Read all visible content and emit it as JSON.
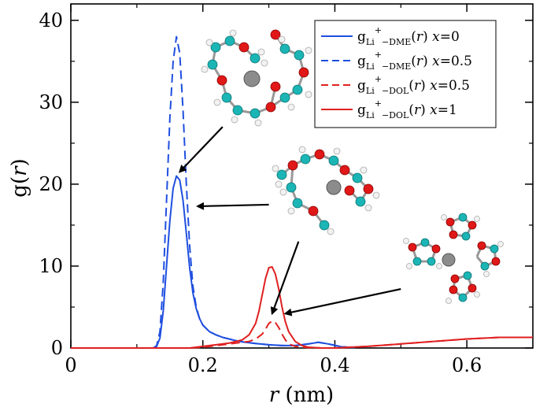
{
  "chart_data": {
    "type": "line",
    "title": "",
    "xlabel_var": "r",
    "xlabel_unit": " (nm)",
    "ylabel_main": "g(",
    "ylabel_var": "r",
    "ylabel_end": ")",
    "xlim": [
      0,
      0.7
    ],
    "ylim": [
      0,
      42
    ],
    "xticks": [
      0,
      0.2,
      0.4,
      0.6
    ],
    "xtick_labels": [
      "0",
      "0.2",
      "0.4",
      "0.6"
    ],
    "yticks": [
      0,
      10,
      20,
      30,
      40
    ],
    "ytick_labels": [
      "0",
      "10",
      "20",
      "30",
      "40"
    ],
    "legend_position": "top-right",
    "series": [
      {
        "name": "g_{Li+-DME}(r) x=0",
        "legend": {
          "g": "g",
          "sub": "Li",
          "sup": "+",
          "sub2": "−DME",
          "r": "(r)",
          "x": "x",
          "val": "=0"
        },
        "color": "#1f4fe0",
        "dash": "solid",
        "x": [
          0.125,
          0.13,
          0.135,
          0.14,
          0.145,
          0.15,
          0.155,
          0.16,
          0.165,
          0.17,
          0.175,
          0.18,
          0.185,
          0.19,
          0.195,
          0.2,
          0.21,
          0.22,
          0.23,
          0.24,
          0.25,
          0.26,
          0.28,
          0.3,
          0.32,
          0.34,
          0.36,
          0.375,
          0.39,
          0.41,
          0.43
        ],
        "y": [
          0,
          0.2,
          1.2,
          4.5,
          10,
          15.5,
          19.5,
          21,
          20.5,
          18,
          14,
          9.8,
          6.7,
          4.8,
          3.6,
          2.8,
          2,
          1.6,
          1.3,
          1.1,
          0.9,
          0.75,
          0.55,
          0.4,
          0.3,
          0.3,
          0.5,
          0.7,
          0.5,
          0.15,
          0.05
        ]
      },
      {
        "name": "g_{Li+-DME}(r) x=0.5",
        "legend": {
          "g": "g",
          "sub": "Li",
          "sup": "+",
          "sub2": "−DME",
          "r": "(r)",
          "x": "x",
          "val": "=0.5"
        },
        "color": "#1f4fe0",
        "dash": "dashed",
        "x": [
          0.125,
          0.13,
          0.135,
          0.14,
          0.145,
          0.15,
          0.155,
          0.16,
          0.165,
          0.17,
          0.175,
          0.18,
          0.185,
          0.19,
          0.195,
          0.2,
          0.21,
          0.22,
          0.23,
          0.24,
          0.25,
          0.26,
          0.28,
          0.3,
          0.32,
          0.34,
          0.36,
          0.375,
          0.39,
          0.41,
          0.43
        ],
        "y": [
          0,
          0.3,
          2,
          8,
          18,
          28,
          35,
          38,
          36,
          29,
          20,
          12.5,
          7.5,
          5,
          3.6,
          2.8,
          2,
          1.6,
          1.3,
          1.1,
          0.9,
          0.75,
          0.55,
          0.4,
          0.3,
          0.3,
          0.5,
          0.7,
          0.5,
          0.15,
          0.05
        ]
      },
      {
        "name": "g_{Li+-DOL}(r) x=0.5",
        "legend": {
          "g": "g",
          "sub": "Li",
          "sup": "+",
          "sub2": "−DOL",
          "r": "(r)",
          "x": "x",
          "val": "=0.5"
        },
        "color": "#e02020",
        "dash": "dashed",
        "x": [
          0,
          0.18,
          0.2,
          0.22,
          0.24,
          0.26,
          0.27,
          0.28,
          0.29,
          0.295,
          0.3,
          0.305,
          0.31,
          0.315,
          0.32,
          0.325,
          0.33,
          0.34,
          0.36,
          0.38,
          0.4,
          0.45,
          0.5,
          0.55,
          0.6,
          0.65,
          0.7
        ],
        "y": [
          0,
          0,
          0.1,
          0.3,
          0.5,
          0.7,
          0.8,
          1.1,
          1.7,
          2.3,
          3.0,
          3.3,
          3.1,
          2.5,
          1.7,
          1.0,
          0.5,
          0.2,
          0.05,
          0,
          0,
          0.2,
          0.5,
          0.8,
          1.1,
          1.3,
          1.3
        ]
      },
      {
        "name": "g_{Li+-DOL}(r) x=1",
        "legend": {
          "g": "g",
          "sub": "Li",
          "sup": "+",
          "sub2": "−DOL",
          "r": "(r)",
          "x": "x",
          "val": "=1"
        },
        "color": "#e02020",
        "dash": "solid",
        "x": [
          0,
          0.18,
          0.2,
          0.22,
          0.24,
          0.26,
          0.27,
          0.28,
          0.285,
          0.29,
          0.295,
          0.3,
          0.305,
          0.31,
          0.315,
          0.32,
          0.325,
          0.33,
          0.34,
          0.35,
          0.36,
          0.38,
          0.4,
          0.45,
          0.5,
          0.55,
          0.6,
          0.65,
          0.7
        ],
        "y": [
          0,
          0,
          0.2,
          0.4,
          0.6,
          1.0,
          1.6,
          3.0,
          4.5,
          6.5,
          8.5,
          9.8,
          9.9,
          9.0,
          7.2,
          5.0,
          3.2,
          2.0,
          0.8,
          0.3,
          0.1,
          0,
          0,
          0.2,
          0.5,
          0.8,
          1.1,
          1.3,
          1.3
        ]
      }
    ],
    "annotations": [
      {
        "name": "arrow-dme-x05",
        "from": [
          0.23,
          27
        ],
        "to": [
          0.165,
          21.5
        ]
      },
      {
        "name": "arrow-dme-x0",
        "from": [
          0.3,
          17.5
        ],
        "to": [
          0.192,
          17.3
        ]
      },
      {
        "name": "arrow-dol-x05",
        "from": [
          0.345,
          13
        ],
        "to": [
          0.305,
          4.2
        ]
      },
      {
        "name": "arrow-dol-x1",
        "from": [
          0.5,
          7.2
        ],
        "to": [
          0.325,
          4.2
        ]
      }
    ]
  }
}
